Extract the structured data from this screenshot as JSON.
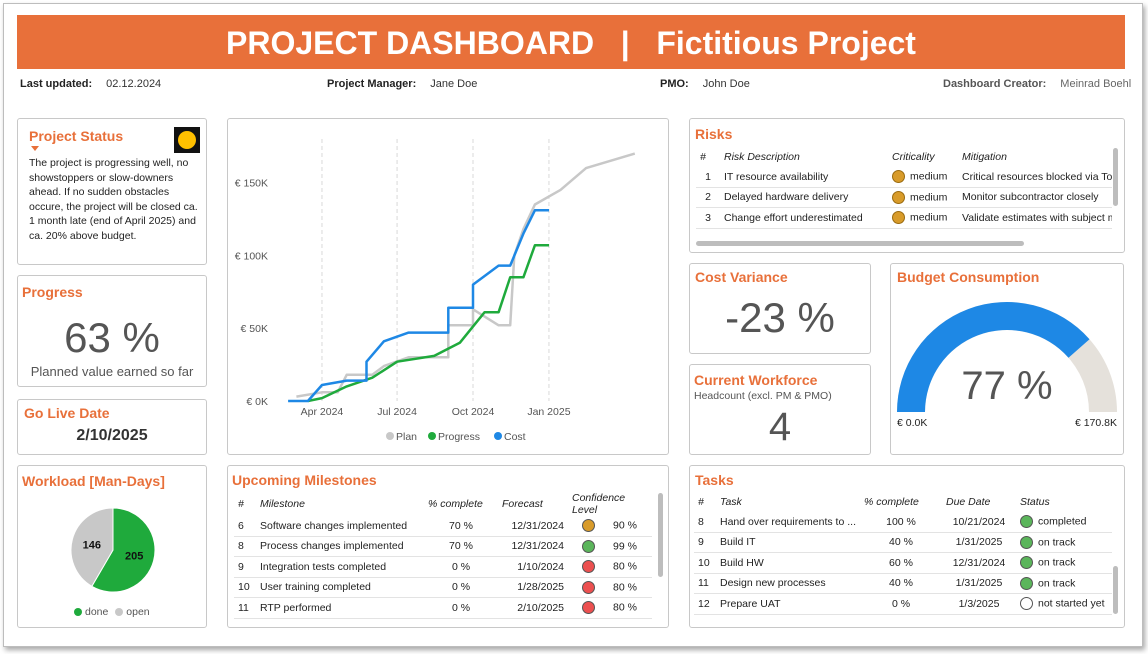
{
  "header": {
    "title": "PROJECT DASHBOARD   |   Fictitious Project",
    "last_updated_label": "Last updated:",
    "last_updated_value": "02.12.2024",
    "pm_label": "Project Manager:",
    "pm_value": "Jane Doe",
    "pmo_label": "PMO:",
    "pmo_value": "John Doe",
    "creator_label": "Dashboard Creator:",
    "creator_value": "Meinrad Boehl"
  },
  "status": {
    "title": "Project Status",
    "text": "The project is progressing well, no showstoppers or slow-downers ahead. If no sudden obstacles occure, the project will be closed ca. 1 month late (end of April 2025) and ca. 20% above budget.",
    "indicator_color": "#FFC000"
  },
  "progress": {
    "title": "Progress",
    "value": "63 %",
    "caption": "Planned value earned so far"
  },
  "golive": {
    "title": "Go Live Date",
    "value": "2/10/2025"
  },
  "workload": {
    "title": "Workload [Man-Days]",
    "done": 205,
    "open": 146,
    "done_label": "205",
    "open_label": "146",
    "legend_done": "done",
    "legend_open": "open",
    "done_color": "#1FAA3C",
    "open_color": "#C8C8C8"
  },
  "chart_data": {
    "type": "line",
    "x_ticks": [
      "Apr 2024",
      "Jul 2024",
      "Oct 2024",
      "Jan 2025"
    ],
    "y_ticks": [
      "€ 0K",
      "€ 50K",
      "€ 100K",
      "€ 150K"
    ],
    "ylim": [
      0,
      180000
    ],
    "xlim": [
      "2024-02-15",
      "2025-05-01"
    ],
    "series": [
      {
        "name": "Plan",
        "color": "#C8C8C8",
        "points": [
          [
            "2024-03-01",
            3000
          ],
          [
            "2024-04-01",
            6000
          ],
          [
            "2024-04-20",
            6000
          ],
          [
            "2024-05-01",
            18000
          ],
          [
            "2024-06-01",
            18000
          ],
          [
            "2024-06-15",
            24000
          ],
          [
            "2024-07-15",
            30000
          ],
          [
            "2024-08-01",
            30000
          ],
          [
            "2024-09-01",
            30000
          ],
          [
            "2024-09-01",
            52000
          ],
          [
            "2024-10-01",
            52000
          ],
          [
            "2024-10-01",
            63000
          ],
          [
            "2024-11-01",
            52000
          ],
          [
            "2024-11-15",
            52000
          ],
          [
            "2024-11-20",
            100000
          ],
          [
            "2024-12-01",
            118000
          ],
          [
            "2024-12-15",
            135000
          ],
          [
            "2025-01-15",
            145000
          ],
          [
            "2025-02-15",
            160000
          ],
          [
            "2025-04-15",
            170000
          ]
        ]
      },
      {
        "name": "Progress",
        "color": "#1FAA3C",
        "points": [
          [
            "2024-03-15",
            0
          ],
          [
            "2024-04-01",
            2000
          ],
          [
            "2024-05-01",
            10000
          ],
          [
            "2024-06-01",
            16000
          ],
          [
            "2024-07-01",
            27000
          ],
          [
            "2024-08-15",
            31000
          ],
          [
            "2024-09-15",
            40000
          ],
          [
            "2024-10-15",
            61000
          ],
          [
            "2024-11-01",
            61000
          ],
          [
            "2024-11-15",
            85000
          ],
          [
            "2024-12-01",
            85000
          ],
          [
            "2024-12-15",
            107000
          ],
          [
            "2025-01-01",
            107000
          ]
        ]
      },
      {
        "name": "Cost",
        "color": "#1E88E5",
        "points": [
          [
            "2024-02-20",
            0
          ],
          [
            "2024-03-15",
            0
          ],
          [
            "2024-04-01",
            11000
          ],
          [
            "2024-05-01",
            14000
          ],
          [
            "2024-05-25",
            14000
          ],
          [
            "2024-05-25",
            27000
          ],
          [
            "2024-06-15",
            41000
          ],
          [
            "2024-07-15",
            47000
          ],
          [
            "2024-08-15",
            47000
          ],
          [
            "2024-09-01",
            47000
          ],
          [
            "2024-09-01",
            64000
          ],
          [
            "2024-10-01",
            64000
          ],
          [
            "2024-10-01",
            80000
          ],
          [
            "2024-11-01",
            93000
          ],
          [
            "2024-11-15",
            93000
          ],
          [
            "2024-12-01",
            115000
          ],
          [
            "2024-12-15",
            131000
          ],
          [
            "2025-01-01",
            131000
          ]
        ]
      }
    ],
    "legend_position": "bottom",
    "grid": "vertical-dashed"
  },
  "risks": {
    "title": "Risks",
    "headers": [
      "#",
      "Risk Description",
      "Criticality",
      "Mitigation"
    ],
    "rows": [
      {
        "num": "1",
        "desc": "IT resource availability",
        "crit": "medium",
        "mit": "Critical resources blocked via Top M",
        "color": "#D89B2A"
      },
      {
        "num": "2",
        "desc": "Delayed hardware delivery",
        "crit": "medium",
        "mit": "Monitor subcontractor closely",
        "color": "#D89B2A"
      },
      {
        "num": "3",
        "desc": "Change effort underestimated",
        "crit": "medium",
        "mit": "Validate estimates with subject ma",
        "color": "#D89B2A"
      }
    ]
  },
  "cost_variance": {
    "title": "Cost Variance",
    "value": "-23 %"
  },
  "workforce": {
    "title": "Current Workforce",
    "subtitle": "Headcount (excl. PM & PMO)",
    "value": "4"
  },
  "budget": {
    "title": "Budget Consumption",
    "value": "77 %",
    "fraction": 0.77,
    "min_label": "€ 0.0K",
    "max_label": "€ 170.8K",
    "fill_color": "#1E88E5",
    "track_color": "#E5E1DB"
  },
  "milestones": {
    "title": "Upcoming Milestones",
    "headers": [
      "#",
      "Milestone",
      "% complete",
      "Forecast",
      "Confidence Level"
    ],
    "rows": [
      {
        "num": "6",
        "name": "Software changes implemented",
        "pct": "70 %",
        "forecast": "12/31/2024",
        "conf": "90 %",
        "color": "#D89B2A"
      },
      {
        "num": "8",
        "name": "Process changes implemented",
        "pct": "70 %",
        "forecast": "12/31/2024",
        "conf": "99 %",
        "color": "#5BB55B"
      },
      {
        "num": "9",
        "name": "Integration tests completed",
        "pct": "0 %",
        "forecast": "1/10/2024",
        "conf": "80 %",
        "color": "#EC5050"
      },
      {
        "num": "10",
        "name": "User training completed",
        "pct": "0 %",
        "forecast": "1/28/2025",
        "conf": "80 %",
        "color": "#EC5050"
      },
      {
        "num": "11",
        "name": "RTP performed",
        "pct": "0 %",
        "forecast": "2/10/2025",
        "conf": "80 %",
        "color": "#EC5050"
      }
    ]
  },
  "tasks": {
    "title": "Tasks",
    "headers": [
      "#",
      "Task",
      "% complete",
      "Due Date",
      "Status"
    ],
    "rows": [
      {
        "num": "8",
        "name": "Hand over requirements to ...",
        "pct": "100 %",
        "due": "10/21/2024",
        "status": "completed",
        "color": "#5BB55B"
      },
      {
        "num": "9",
        "name": "Build IT",
        "pct": "40 %",
        "due": "1/31/2025",
        "status": "on track",
        "color": "#5BB55B"
      },
      {
        "num": "10",
        "name": "Build HW",
        "pct": "60 %",
        "due": "12/31/2024",
        "status": "on track",
        "color": "#5BB55B"
      },
      {
        "num": "11",
        "name": "Design new processes",
        "pct": "40 %",
        "due": "1/31/2025",
        "status": "on track",
        "color": "#5BB55B"
      },
      {
        "num": "12",
        "name": "Prepare UAT",
        "pct": "0 %",
        "due": "1/3/2025",
        "status": "not started yet",
        "color": "#FFFFFF"
      }
    ]
  }
}
